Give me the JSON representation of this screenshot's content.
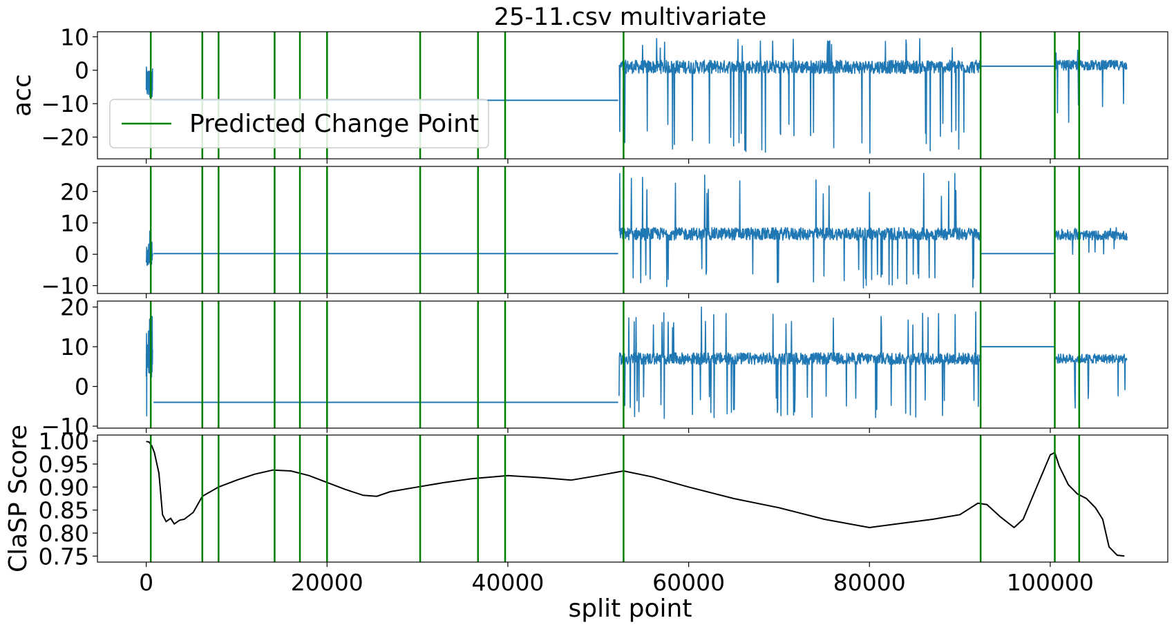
{
  "chart_data": {
    "type": "line",
    "title": "25-11.csv multivariate",
    "xlabel": "split point",
    "xlim": [
      -5400,
      113000
    ],
    "x_ticks": [
      0,
      20000,
      40000,
      60000,
      80000,
      100000
    ],
    "x_tick_labels": [
      "0",
      "20000",
      "40000",
      "60000",
      "80000",
      "100000"
    ],
    "legend": {
      "label": "Predicted Change Point",
      "color": "#008000",
      "placement": "upper-left of top panel"
    },
    "change_points": [
      500,
      6200,
      8000,
      14200,
      17000,
      20000,
      30300,
      36700,
      39700,
      52800,
      92300,
      100500,
      103200
    ],
    "series_color": "#1f77b4",
    "score_color": "#000000",
    "panels": [
      {
        "id": "acc-x",
        "ylabel": "acc",
        "ylim": [
          -26.5,
          11.5
        ],
        "y_ticks": [
          10,
          0,
          -10,
          -20
        ],
        "y_tick_labels": [
          "10",
          "0",
          "−10",
          "−20"
        ],
        "baseline": [
          {
            "x0": 800,
            "x1": 52200,
            "y": -9
          },
          {
            "x0": 92300,
            "x1": 100500,
            "y": 1.2
          }
        ],
        "noise": [
          {
            "x0": 0,
            "x1": 700,
            "center": -4,
            "spread": 5,
            "spike_lo": -9,
            "spike_hi": 4
          },
          {
            "x0": 52300,
            "x1": 92200,
            "center": 1,
            "spread": 2,
            "spike_lo": -25,
            "spike_hi": 9.5
          },
          {
            "x0": 100600,
            "x1": 108500,
            "center": 1.5,
            "spread": 1.5,
            "spike_lo": -16,
            "spike_hi": 6.5
          }
        ]
      },
      {
        "id": "acc-y",
        "ylabel": "",
        "ylim": [
          -12.5,
          28
        ],
        "y_ticks": [
          20,
          10,
          0,
          -10
        ],
        "y_tick_labels": [
          "20",
          "10",
          "0",
          "−10"
        ],
        "baseline": [
          {
            "x0": 800,
            "x1": 52200,
            "y": 0.2
          },
          {
            "x0": 92300,
            "x1": 100500,
            "y": 0.2
          }
        ],
        "noise": [
          {
            "x0": 0,
            "x1": 700,
            "center": 0,
            "spread": 4,
            "spike_lo": -4,
            "spike_hi": 8
          },
          {
            "x0": 52300,
            "x1": 92200,
            "center": 6.5,
            "spread": 2,
            "spike_lo": -11,
            "spike_hi": 26.5
          },
          {
            "x0": 100600,
            "x1": 108500,
            "center": 6,
            "spread": 1.5,
            "spike_lo": 0,
            "spike_hi": 8.5
          }
        ]
      },
      {
        "id": "acc-z",
        "ylabel": "",
        "ylim": [
          -10.5,
          21.5
        ],
        "y_ticks": [
          20,
          10,
          0,
          -10
        ],
        "y_tick_labels": [
          "20",
          "10",
          "0",
          "−10"
        ],
        "baseline": [
          {
            "x0": 800,
            "x1": 52200,
            "y": -4
          },
          {
            "x0": 92300,
            "x1": 100500,
            "y": 10
          }
        ],
        "noise": [
          {
            "x0": 0,
            "x1": 700,
            "center": 8,
            "spread": 6,
            "spike_lo": -9,
            "spike_hi": 19
          },
          {
            "x0": 52300,
            "x1": 92200,
            "center": 7,
            "spread": 1.5,
            "spike_lo": -8.5,
            "spike_hi": 20
          },
          {
            "x0": 100600,
            "x1": 108500,
            "center": 7,
            "spread": 1.2,
            "spike_lo": -5.5,
            "spike_hi": 9.5
          }
        ]
      },
      {
        "id": "clasp-score",
        "ylabel": "ClaSP Score",
        "ylim": [
          0.737,
          1.013
        ],
        "y_ticks": [
          1.0,
          0.95,
          0.9,
          0.85,
          0.8,
          0.75
        ],
        "y_tick_labels": [
          "1.00",
          "0.95",
          "0.90",
          "0.85",
          "0.80",
          "0.75"
        ],
        "score": {
          "x": [
            0,
            300,
            600,
            900,
            1400,
            1800,
            2200,
            2700,
            3100,
            3700,
            4200,
            5200,
            6200,
            8000,
            10000,
            12000,
            14000,
            16000,
            18000,
            20000,
            22000,
            24000,
            25500,
            27000,
            30000,
            33000,
            36000,
            40000,
            44000,
            47000,
            50000,
            52800,
            56000,
            60000,
            65000,
            70000,
            75000,
            80000,
            83000,
            87000,
            90000,
            92000,
            93000,
            94500,
            96000,
            97000,
            98500,
            100000,
            100500,
            101000,
            102000,
            103000,
            104000,
            105000,
            105800,
            106500,
            107400,
            108200
          ],
          "y": [
            0.999,
            0.998,
            0.99,
            0.975,
            0.93,
            0.84,
            0.825,
            0.832,
            0.82,
            0.828,
            0.83,
            0.845,
            0.88,
            0.9,
            0.915,
            0.928,
            0.937,
            0.935,
            0.925,
            0.91,
            0.895,
            0.882,
            0.88,
            0.89,
            0.9,
            0.91,
            0.918,
            0.925,
            0.92,
            0.915,
            0.925,
            0.935,
            0.922,
            0.9,
            0.875,
            0.855,
            0.83,
            0.812,
            0.82,
            0.83,
            0.84,
            0.865,
            0.862,
            0.835,
            0.812,
            0.83,
            0.9,
            0.97,
            0.975,
            0.945,
            0.905,
            0.885,
            0.875,
            0.855,
            0.83,
            0.77,
            0.752,
            0.75
          ]
        }
      }
    ]
  }
}
